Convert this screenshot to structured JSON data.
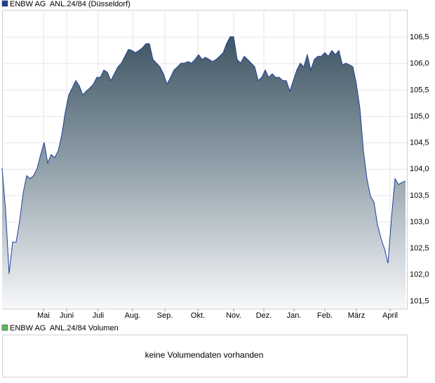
{
  "chart_data": [
    {
      "type": "area",
      "series": [
        {
          "name": "ENBW AG  ANL.24/84 (Düsseldorf)",
          "color": "#1f3f99",
          "values": [
            104.02,
            103.22,
            102.02,
            102.62,
            102.62,
            103.02,
            103.55,
            103.88,
            103.82,
            103.88,
            104.02,
            104.28,
            104.51,
            104.12,
            104.28,
            104.22,
            104.35,
            104.65,
            105.08,
            105.41,
            105.54,
            105.68,
            105.58,
            105.41,
            105.48,
            105.54,
            105.61,
            105.74,
            105.74,
            105.88,
            105.84,
            105.68,
            105.81,
            105.94,
            106.01,
            106.14,
            106.27,
            106.25,
            106.21,
            106.25,
            106.3,
            106.38,
            106.38,
            106.08,
            106.01,
            105.94,
            105.81,
            105.61,
            105.74,
            105.88,
            105.94,
            106.01,
            106.01,
            106.04,
            106.01,
            106.08,
            106.17,
            106.08,
            106.12,
            106.08,
            106.04,
            106.08,
            106.14,
            106.21,
            106.38,
            106.51,
            106.51,
            106.08,
            106.01,
            106.14,
            106.08,
            106.01,
            105.94,
            105.68,
            105.74,
            105.88,
            105.74,
            105.81,
            105.74,
            105.74,
            105.68,
            105.68,
            105.48,
            105.68,
            105.88,
            106.01,
            105.94,
            106.17,
            105.88,
            106.08,
            106.14,
            106.14,
            106.21,
            106.14,
            106.25,
            106.17,
            106.25,
            105.98,
            106.01,
            105.98,
            105.94,
            105.61,
            105.15,
            104.35,
            103.82,
            103.49,
            103.38,
            102.95,
            102.69,
            102.49,
            102.22,
            103.09,
            103.82,
            103.71,
            103.75,
            103.78
          ]
        }
      ],
      "xlim": [
        0,
        115
      ],
      "xticks": [
        {
          "value": 11.8,
          "label": "Mai"
        },
        {
          "value": 18.4,
          "label": "Juni"
        },
        {
          "value": 27.4,
          "label": "Juli"
        },
        {
          "value": 37.2,
          "label": "Aug."
        },
        {
          "value": 46.4,
          "label": "Sep."
        },
        {
          "value": 55.8,
          "label": "Okt."
        },
        {
          "value": 66,
          "label": "Nov."
        },
        {
          "value": 74.6,
          "label": "Dez."
        },
        {
          "value": 83.2,
          "label": "Jan."
        },
        {
          "value": 92,
          "label": "Feb."
        },
        {
          "value": 101,
          "label": "März"
        },
        {
          "value": 110.6,
          "label": "April"
        }
      ],
      "ylim": [
        101.36,
        107.02
      ],
      "yticks": [
        {
          "value": 101.5,
          "label": "101,5"
        },
        {
          "value": 102,
          "label": "102,0"
        },
        {
          "value": 102.5,
          "label": "102,5"
        },
        {
          "value": 103,
          "label": "103,0"
        },
        {
          "value": 103.5,
          "label": "103,5"
        },
        {
          "value": 104,
          "label": "104,0"
        },
        {
          "value": 104.5,
          "label": "104,5"
        },
        {
          "value": 105,
          "label": "105,0"
        },
        {
          "value": 105.5,
          "label": "105,5"
        },
        {
          "value": 106,
          "label": "106,0"
        },
        {
          "value": 106.5,
          "label": "106,5"
        }
      ],
      "grid": true
    },
    {
      "type": "volume",
      "series": [
        {
          "name": "ENBW AG  ANL.24/84 Volumen",
          "color": "#5cb85c"
        }
      ],
      "message": "keine Volumendaten vorhanden"
    }
  ]
}
